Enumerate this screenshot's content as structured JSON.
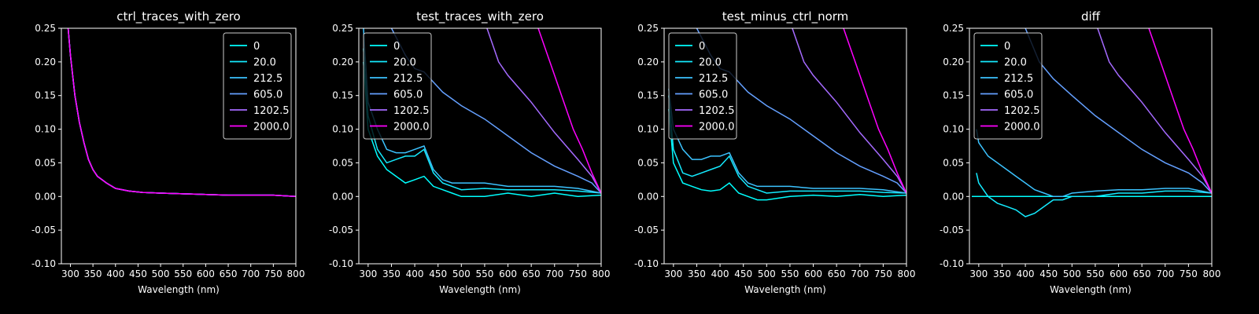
{
  "figure": {
    "background": "#000000",
    "axis_color": "#ffffff"
  },
  "chart_data": [
    {
      "type": "line",
      "title": "ctrl_traces_with_zero",
      "xlabel": "Wavelength (nm)",
      "xlim": [
        280,
        800
      ],
      "ylim": [
        -0.1,
        0.25
      ],
      "xticks": [
        300,
        350,
        400,
        450,
        500,
        550,
        600,
        650,
        700,
        750,
        800
      ],
      "yticks": [
        -0.1,
        -0.05,
        0.0,
        0.05,
        0.1,
        0.15,
        0.2,
        0.25
      ],
      "legend": "top-right",
      "series": [
        {
          "name": "0",
          "color": "#00ffff",
          "x": [
            295,
            300,
            310,
            320,
            330,
            340,
            350,
            360,
            380,
            400,
            430,
            460,
            500,
            550,
            600,
            650,
            700,
            750,
            800
          ],
          "y": [
            0.25,
            0.21,
            0.15,
            0.11,
            0.08,
            0.055,
            0.04,
            0.03,
            0.02,
            0.012,
            0.008,
            0.006,
            0.005,
            0.004,
            0.003,
            0.002,
            0.002,
            0.002,
            0.0
          ]
        },
        {
          "name": "20.0",
          "color": "#14ebff",
          "x": [
            295,
            300,
            310,
            320,
            330,
            340,
            350,
            360,
            380,
            400,
            430,
            460,
            500,
            550,
            600,
            650,
            700,
            750,
            800
          ],
          "y": [
            0.25,
            0.21,
            0.15,
            0.11,
            0.08,
            0.055,
            0.04,
            0.03,
            0.02,
            0.012,
            0.008,
            0.006,
            0.005,
            0.004,
            0.003,
            0.002,
            0.002,
            0.002,
            0.0
          ]
        },
        {
          "name": "212.5",
          "color": "#3cc3ff",
          "x": [
            295,
            300,
            310,
            320,
            330,
            340,
            350,
            360,
            380,
            400,
            430,
            460,
            500,
            550,
            600,
            650,
            700,
            750,
            800
          ],
          "y": [
            0.25,
            0.21,
            0.15,
            0.11,
            0.08,
            0.055,
            0.04,
            0.03,
            0.02,
            0.012,
            0.008,
            0.006,
            0.005,
            0.004,
            0.003,
            0.002,
            0.002,
            0.002,
            0.0
          ]
        },
        {
          "name": "605.0",
          "color": "#64a0ff",
          "x": [
            295,
            300,
            310,
            320,
            330,
            340,
            350,
            360,
            380,
            400,
            430,
            460,
            500,
            550,
            600,
            650,
            700,
            750,
            800
          ],
          "y": [
            0.25,
            0.21,
            0.15,
            0.11,
            0.08,
            0.055,
            0.04,
            0.03,
            0.02,
            0.012,
            0.008,
            0.006,
            0.005,
            0.004,
            0.003,
            0.002,
            0.002,
            0.002,
            0.0
          ]
        },
        {
          "name": "1202.5",
          "color": "#a56aff",
          "x": [
            295,
            300,
            310,
            320,
            330,
            340,
            350,
            360,
            380,
            400,
            430,
            460,
            500,
            550,
            600,
            650,
            700,
            750,
            800
          ],
          "y": [
            0.25,
            0.21,
            0.15,
            0.11,
            0.08,
            0.055,
            0.04,
            0.03,
            0.02,
            0.012,
            0.008,
            0.006,
            0.005,
            0.004,
            0.003,
            0.002,
            0.002,
            0.002,
            0.0
          ]
        },
        {
          "name": "2000.0",
          "color": "#ff00ff",
          "x": [
            295,
            300,
            310,
            320,
            330,
            340,
            350,
            360,
            380,
            400,
            430,
            460,
            500,
            550,
            600,
            650,
            700,
            750,
            800
          ],
          "y": [
            0.25,
            0.21,
            0.15,
            0.11,
            0.08,
            0.055,
            0.04,
            0.03,
            0.02,
            0.012,
            0.008,
            0.006,
            0.005,
            0.004,
            0.003,
            0.002,
            0.002,
            0.002,
            0.0
          ]
        }
      ]
    },
    {
      "type": "line",
      "title": "test_traces_with_zero",
      "xlabel": "Wavelength (nm)",
      "xlim": [
        280,
        800
      ],
      "ylim": [
        -0.1,
        0.25
      ],
      "xticks": [
        300,
        350,
        400,
        450,
        500,
        550,
        600,
        650,
        700,
        750,
        800
      ],
      "yticks": [
        -0.1,
        -0.05,
        0.0,
        0.05,
        0.1,
        0.15,
        0.2,
        0.25
      ],
      "legend": "top-left",
      "series": [
        {
          "name": "0",
          "color": "#00ffff",
          "x": [
            290,
            300,
            320,
            340,
            360,
            380,
            400,
            420,
            440,
            460,
            480,
            500,
            550,
            600,
            650,
            700,
            750,
            800
          ],
          "y": [
            0.2,
            0.1,
            0.06,
            0.04,
            0.03,
            0.02,
            0.025,
            0.03,
            0.015,
            0.01,
            0.005,
            0.0,
            0.0,
            0.005,
            0.0,
            0.005,
            0.0,
            0.002
          ]
        },
        {
          "name": "20.0",
          "color": "#14ebff",
          "x": [
            290,
            300,
            320,
            340,
            360,
            380,
            400,
            420,
            440,
            460,
            480,
            500,
            550,
            600,
            650,
            700,
            750,
            800
          ],
          "y": [
            0.22,
            0.12,
            0.07,
            0.05,
            0.055,
            0.06,
            0.06,
            0.07,
            0.035,
            0.02,
            0.015,
            0.01,
            0.012,
            0.01,
            0.01,
            0.01,
            0.008,
            0.005
          ]
        },
        {
          "name": "212.5",
          "color": "#3cc3ff",
          "x": [
            290,
            300,
            320,
            340,
            360,
            380,
            400,
            420,
            440,
            460,
            480,
            500,
            550,
            600,
            650,
            700,
            750,
            800
          ],
          "y": [
            0.25,
            0.14,
            0.1,
            0.07,
            0.065,
            0.065,
            0.07,
            0.075,
            0.04,
            0.025,
            0.02,
            0.02,
            0.02,
            0.015,
            0.015,
            0.015,
            0.012,
            0.005
          ]
        },
        {
          "name": "605.0",
          "color": "#64a0ff",
          "x": [
            350,
            380,
            400,
            420,
            440,
            460,
            480,
            500,
            550,
            600,
            650,
            700,
            750,
            780,
            800
          ],
          "y": [
            0.25,
            0.21,
            0.19,
            0.185,
            0.17,
            0.155,
            0.145,
            0.135,
            0.115,
            0.09,
            0.065,
            0.045,
            0.03,
            0.02,
            0.005
          ]
        },
        {
          "name": "1202.5",
          "color": "#a56aff",
          "x": [
            555,
            580,
            600,
            650,
            700,
            750,
            780,
            800
          ],
          "y": [
            0.25,
            0.2,
            0.18,
            0.14,
            0.095,
            0.055,
            0.03,
            0.005
          ]
        },
        {
          "name": "2000.0",
          "color": "#ff00ff",
          "x": [
            665,
            680,
            700,
            720,
            740,
            760,
            780,
            800
          ],
          "y": [
            0.25,
            0.22,
            0.18,
            0.14,
            0.1,
            0.07,
            0.035,
            0.005
          ]
        }
      ]
    },
    {
      "type": "line",
      "title": "test_minus_ctrl_norm",
      "xlabel": "Wavelength (nm)",
      "xlim": [
        280,
        800
      ],
      "ylim": [
        -0.1,
        0.25
      ],
      "xticks": [
        300,
        350,
        400,
        450,
        500,
        550,
        600,
        650,
        700,
        750,
        800
      ],
      "yticks": [
        -0.1,
        -0.05,
        0.0,
        0.05,
        0.1,
        0.15,
        0.2,
        0.25
      ],
      "legend": "top-left",
      "series": [
        {
          "name": "0",
          "color": "#00ffff",
          "x": [
            290,
            300,
            320,
            340,
            360,
            380,
            400,
            420,
            440,
            460,
            480,
            500,
            550,
            600,
            650,
            700,
            750,
            800
          ],
          "y": [
            0.13,
            0.05,
            0.02,
            0.015,
            0.01,
            0.008,
            0.01,
            0.02,
            0.005,
            0.0,
            -0.005,
            -0.005,
            0.0,
            0.002,
            0.0,
            0.003,
            0.0,
            0.002
          ]
        },
        {
          "name": "20.0",
          "color": "#14ebff",
          "x": [
            290,
            300,
            320,
            340,
            360,
            380,
            400,
            420,
            440,
            460,
            480,
            500,
            550,
            600,
            650,
            700,
            750,
            800
          ],
          "y": [
            0.15,
            0.07,
            0.035,
            0.03,
            0.035,
            0.04,
            0.045,
            0.06,
            0.03,
            0.015,
            0.01,
            0.005,
            0.008,
            0.008,
            0.008,
            0.008,
            0.006,
            0.005
          ]
        },
        {
          "name": "212.5",
          "color": "#3cc3ff",
          "x": [
            290,
            300,
            320,
            340,
            360,
            380,
            400,
            420,
            440,
            460,
            480,
            500,
            550,
            600,
            650,
            700,
            750,
            800
          ],
          "y": [
            0.16,
            0.1,
            0.07,
            0.055,
            0.055,
            0.06,
            0.06,
            0.065,
            0.035,
            0.02,
            0.015,
            0.015,
            0.015,
            0.012,
            0.012,
            0.012,
            0.01,
            0.005
          ]
        },
        {
          "name": "605.0",
          "color": "#64a0ff",
          "x": [
            350,
            380,
            400,
            420,
            440,
            460,
            480,
            500,
            550,
            600,
            650,
            700,
            750,
            780,
            800
          ],
          "y": [
            0.25,
            0.21,
            0.19,
            0.185,
            0.17,
            0.155,
            0.145,
            0.135,
            0.115,
            0.09,
            0.065,
            0.045,
            0.03,
            0.02,
            0.005
          ]
        },
        {
          "name": "1202.5",
          "color": "#a56aff",
          "x": [
            555,
            580,
            600,
            650,
            700,
            750,
            780,
            800
          ],
          "y": [
            0.25,
            0.2,
            0.18,
            0.14,
            0.095,
            0.055,
            0.03,
            0.005
          ]
        },
        {
          "name": "2000.0",
          "color": "#ff00ff",
          "x": [
            665,
            680,
            700,
            720,
            740,
            760,
            780,
            800
          ],
          "y": [
            0.25,
            0.22,
            0.18,
            0.14,
            0.1,
            0.07,
            0.035,
            0.005
          ]
        }
      ]
    },
    {
      "type": "line",
      "title": "diff",
      "xlabel": "Wavelength (nm)",
      "xlim": [
        280,
        800
      ],
      "ylim": [
        -0.1,
        0.25
      ],
      "xticks": [
        300,
        350,
        400,
        450,
        500,
        550,
        600,
        650,
        700,
        750,
        800
      ],
      "yticks": [
        -0.1,
        -0.05,
        0.0,
        0.05,
        0.1,
        0.15,
        0.2,
        0.25
      ],
      "legend": "top-left",
      "series": [
        {
          "name": "0",
          "color": "#00ffff",
          "x": [
            285,
            800
          ],
          "y": [
            0.0,
            0.0
          ]
        },
        {
          "name": "20.0",
          "color": "#14ebff",
          "x": [
            295,
            300,
            320,
            340,
            360,
            380,
            400,
            420,
            440,
            460,
            480,
            500,
            550,
            600,
            650,
            700,
            750,
            800
          ],
          "y": [
            0.035,
            0.02,
            0.0,
            -0.01,
            -0.015,
            -0.02,
            -0.03,
            -0.025,
            -0.015,
            -0.005,
            -0.005,
            0.0,
            0.0,
            0.005,
            0.005,
            0.008,
            0.008,
            0.005
          ]
        },
        {
          "name": "212.5",
          "color": "#3cc3ff",
          "x": [
            295,
            300,
            320,
            340,
            360,
            380,
            400,
            420,
            440,
            460,
            480,
            500,
            550,
            600,
            650,
            700,
            750,
            800
          ],
          "y": [
            0.1,
            0.08,
            0.06,
            0.05,
            0.04,
            0.03,
            0.02,
            0.01,
            0.005,
            0.0,
            0.0,
            0.005,
            0.008,
            0.01,
            0.01,
            0.012,
            0.012,
            0.005
          ]
        },
        {
          "name": "605.0",
          "color": "#64a0ff",
          "x": [
            400,
            430,
            460,
            500,
            550,
            600,
            650,
            700,
            750,
            780,
            800
          ],
          "y": [
            0.25,
            0.2,
            0.175,
            0.15,
            0.12,
            0.095,
            0.07,
            0.05,
            0.035,
            0.02,
            0.005
          ]
        },
        {
          "name": "1202.5",
          "color": "#a56aff",
          "x": [
            555,
            580,
            600,
            650,
            700,
            750,
            780,
            800
          ],
          "y": [
            0.25,
            0.2,
            0.18,
            0.14,
            0.095,
            0.055,
            0.03,
            0.005
          ]
        },
        {
          "name": "2000.0",
          "color": "#ff00ff",
          "x": [
            665,
            680,
            700,
            720,
            740,
            760,
            780,
            800
          ],
          "y": [
            0.25,
            0.22,
            0.18,
            0.14,
            0.1,
            0.07,
            0.035,
            0.005
          ]
        }
      ]
    }
  ]
}
